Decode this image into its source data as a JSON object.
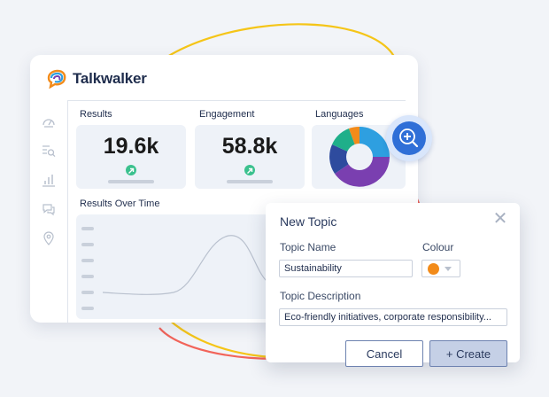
{
  "brand": {
    "name": "Talkwalker"
  },
  "sidebar": {
    "icons": [
      "speedometer-icon",
      "search-list-icon",
      "bar-chart-icon",
      "chat-bubbles-icon",
      "location-pin-icon"
    ]
  },
  "metrics": [
    {
      "title": "Results",
      "value": "19.6k",
      "trend": "up",
      "trend_icon": "arrow-up-right-icon"
    },
    {
      "title": "Engagement",
      "value": "58.8k",
      "trend": "up",
      "trend_icon": "arrow-up-right-icon"
    }
  ],
  "languages": {
    "title": "Languages"
  },
  "chart_data": {
    "type": "area",
    "title": "Results Over Time",
    "xlabel": "",
    "ylabel": "",
    "grid": false
  },
  "dialog": {
    "title": "New Topic",
    "name_label": "Topic Name",
    "name_value": "Sustainability",
    "colour_label": "Colour",
    "colour_value": "#f28b1a",
    "description_label": "Topic Description",
    "description_value": "Eco-friendly initiatives, corporate responsibility...",
    "cancel_label": "Cancel",
    "create_label": "+ Create"
  },
  "colors": {
    "accent_blue": "#2f6fd7",
    "trend_green": "#3bc18e",
    "donut": [
      "#7a3fb0",
      "#2e4b9e",
      "#1faf8a",
      "#f28b1a",
      "#2e9fe0"
    ]
  }
}
